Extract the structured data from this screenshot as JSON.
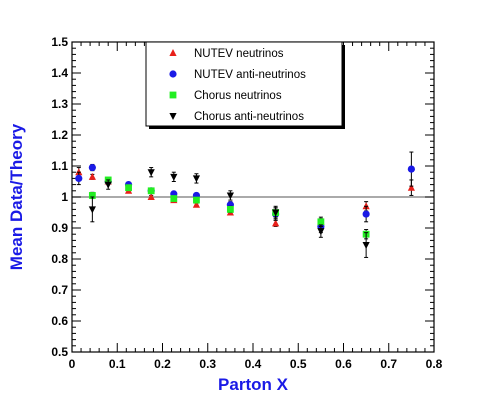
{
  "chart_data": {
    "type": "scatter",
    "xlabel": "Parton X",
    "ylabel": "Mean Data/Theory",
    "xlim": [
      0,
      0.8
    ],
    "ylim": [
      0.5,
      1.5
    ],
    "xticks": [
      "0",
      "0.1",
      "0.2",
      "0.3",
      "0.4",
      "0.5",
      "0.6",
      "0.7",
      "0.8"
    ],
    "yticks": [
      "0.5",
      "0.6",
      "0.7",
      "0.8",
      "0.9",
      "1",
      "1.1",
      "1.2",
      "1.3",
      "1.4",
      "1.5"
    ],
    "reference_line": 1.0,
    "grid": false,
    "legend_position": "top-center",
    "series": [
      {
        "name": "NUTEV neutrinos",
        "marker": "triangle-up",
        "color": "#e8201a",
        "points": [
          {
            "x": 0.015,
            "y": 1.08,
            "err": 0.015
          },
          {
            "x": 0.045,
            "y": 1.065,
            "err": 0.008
          },
          {
            "x": 0.08,
            "y": 1.05,
            "err": 0.005
          },
          {
            "x": 0.125,
            "y": 1.02,
            "err": 0.005
          },
          {
            "x": 0.175,
            "y": 1.0,
            "err": 0.005
          },
          {
            "x": 0.225,
            "y": 0.99,
            "err": 0.005
          },
          {
            "x": 0.275,
            "y": 0.975,
            "err": 0.005
          },
          {
            "x": 0.35,
            "y": 0.95,
            "err": 0.006
          },
          {
            "x": 0.45,
            "y": 0.915,
            "err": 0.01
          },
          {
            "x": 0.55,
            "y": 0.92,
            "err": 0.01
          },
          {
            "x": 0.65,
            "y": 0.97,
            "err": 0.015
          },
          {
            "x": 0.75,
            "y": 1.03,
            "err": 0.025
          }
        ]
      },
      {
        "name": "NUTEV anti-neutrinos",
        "marker": "circle",
        "color": "#1a1ae6",
        "points": [
          {
            "x": 0.015,
            "y": 1.06,
            "err": 0.02
          },
          {
            "x": 0.045,
            "y": 1.095,
            "err": 0.01
          },
          {
            "x": 0.08,
            "y": 1.05,
            "err": 0.008
          },
          {
            "x": 0.125,
            "y": 1.04,
            "err": 0.008
          },
          {
            "x": 0.175,
            "y": 1.02,
            "err": 0.008
          },
          {
            "x": 0.225,
            "y": 1.01,
            "err": 0.008
          },
          {
            "x": 0.275,
            "y": 1.005,
            "err": 0.008
          },
          {
            "x": 0.35,
            "y": 0.975,
            "err": 0.01
          },
          {
            "x": 0.45,
            "y": 0.945,
            "err": 0.02
          },
          {
            "x": 0.55,
            "y": 0.905,
            "err": 0.02
          },
          {
            "x": 0.65,
            "y": 0.945,
            "err": 0.025
          },
          {
            "x": 0.75,
            "y": 1.09,
            "err": 0.055
          }
        ]
      },
      {
        "name": "Chorus neutrinos",
        "marker": "square",
        "color": "#22ee22",
        "points": [
          {
            "x": 0.045,
            "y": 1.005,
            "err": 0.01
          },
          {
            "x": 0.08,
            "y": 1.055,
            "err": 0.008
          },
          {
            "x": 0.125,
            "y": 1.03,
            "err": 0.008
          },
          {
            "x": 0.175,
            "y": 1.02,
            "err": 0.008
          },
          {
            "x": 0.225,
            "y": 0.995,
            "err": 0.008
          },
          {
            "x": 0.275,
            "y": 0.99,
            "err": 0.008
          },
          {
            "x": 0.35,
            "y": 0.96,
            "err": 0.01
          },
          {
            "x": 0.45,
            "y": 0.95,
            "err": 0.015
          },
          {
            "x": 0.55,
            "y": 0.92,
            "err": 0.015
          },
          {
            "x": 0.65,
            "y": 0.88,
            "err": 0.015
          }
        ]
      },
      {
        "name": "Chorus anti-neutrinos",
        "marker": "triangle-down",
        "color": "#000000",
        "points": [
          {
            "x": 0.045,
            "y": 0.96,
            "err": 0.04
          },
          {
            "x": 0.08,
            "y": 1.04,
            "err": 0.015
          },
          {
            "x": 0.175,
            "y": 1.08,
            "err": 0.015
          },
          {
            "x": 0.225,
            "y": 1.065,
            "err": 0.015
          },
          {
            "x": 0.275,
            "y": 1.06,
            "err": 0.015
          },
          {
            "x": 0.35,
            "y": 1.005,
            "err": 0.015
          },
          {
            "x": 0.45,
            "y": 0.95,
            "err": 0.02
          },
          {
            "x": 0.55,
            "y": 0.89,
            "err": 0.02
          },
          {
            "x": 0.65,
            "y": 0.845,
            "err": 0.04
          }
        ]
      }
    ]
  }
}
